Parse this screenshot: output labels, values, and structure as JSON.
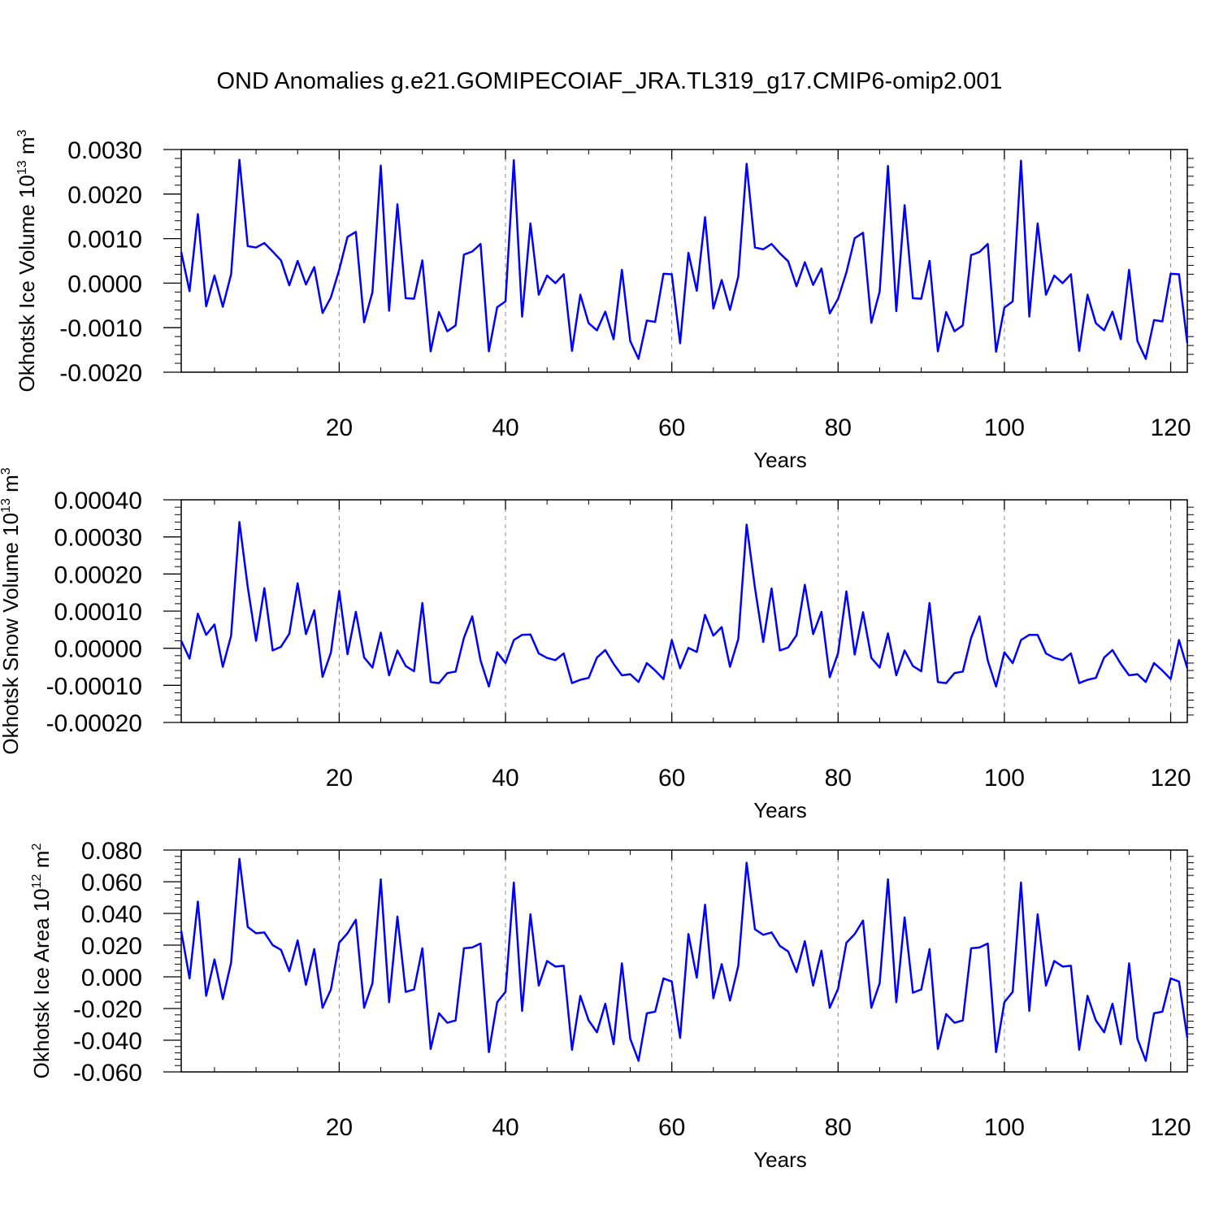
{
  "title": "OND Anomalies g.e21.GOMIPECOIAF_JRA.TL319_g17.CMIP6-omip2.001",
  "colors": {
    "line": "#0000ff",
    "axis": "#000000",
    "grid": "#888888"
  },
  "chart_data": [
    {
      "type": "line",
      "xlabel": "Years",
      "ylabel": "Okhotsk Ice Volume 10",
      "ylabel_exp": "13",
      "ylabel_unit": "m",
      "ylabel_unit_exp": "3",
      "xlim": [
        1,
        122
      ],
      "ylim": [
        -0.002,
        0.003
      ],
      "x_ticks": [
        20,
        40,
        60,
        80,
        100,
        120
      ],
      "x_tick_labels": [
        "20",
        "40",
        "60",
        "80",
        "100",
        "120"
      ],
      "y_ticks": [
        -0.002,
        -0.001,
        0.0,
        0.001,
        0.002,
        0.003
      ],
      "y_tick_labels": [
        "-0.0020",
        "-0.0010",
        "0.0000",
        "0.0010",
        "0.0020",
        "0.0030"
      ],
      "grid": "vertical dashed at x major ticks",
      "series": [
        {
          "x_start": 1,
          "values": [
            0.0007,
            -0.00018,
            0.00155,
            -0.00052,
            0.00017,
            -0.00053,
            0.0002,
            0.00277,
            0.00083,
            0.0008,
            0.0009,
            0.00071,
            0.00051,
            -5e-05,
            0.0005,
            -3e-05,
            0.00036,
            -0.00067,
            -0.00032,
            0.0003,
            0.00104,
            0.00115,
            -0.00088,
            -0.0002,
            0.00264,
            -0.00062,
            0.00177,
            -0.00034,
            -0.00035,
            0.00051,
            -0.00153,
            -0.00065,
            -0.00108,
            -0.00095,
            0.00064,
            0.00071,
            0.00088,
            -0.00153,
            -0.00054,
            -0.00041,
            0.00276,
            -0.00075,
            0.00134,
            -0.00026,
            0.00017,
            0.0,
            0.0002,
            -0.00152,
            -0.00026,
            -0.0009,
            -0.00106,
            -0.00064,
            -0.00126,
            0.0003,
            -0.0013,
            -0.0017,
            -0.00084,
            -0.00087,
            0.00021,
            0.0002,
            -0.00135,
            0.00068,
            -0.00017,
            0.00148,
            -0.00057,
            7e-05,
            -0.0006,
            0.00015,
            0.00268,
            0.0008,
            0.00076,
            0.00088,
            0.00067,
            0.00049,
            -7e-05,
            0.00047,
            -4e-05,
            0.00033,
            -0.00068,
            -0.00035,
            0.00024,
            0.00101,
            0.00113,
            -0.00089,
            -0.00019,
            0.00263,
            -0.00063,
            0.00175,
            -0.00034,
            -0.00035,
            0.0005,
            -0.00153,
            -0.00065,
            -0.00108,
            -0.00095,
            0.00063,
            0.0007,
            0.00088,
            -0.00154,
            -0.00055,
            -0.00041,
            0.00275,
            -0.00075,
            0.00134,
            -0.00026,
            0.00017,
            0.0,
            0.0002,
            -0.00152,
            -0.00026,
            -0.0009,
            -0.00106,
            -0.00064,
            -0.00126,
            0.0003,
            -0.0013,
            -0.0017,
            -0.00083,
            -0.00086,
            0.00021,
            0.0002,
            -0.00135
          ]
        }
      ]
    },
    {
      "type": "line",
      "xlabel": "Years",
      "ylabel": "Okhotsk Snow Volume 10",
      "ylabel_exp": "13",
      "ylabel_unit": "m",
      "ylabel_unit_exp": "3",
      "xlim": [
        1,
        122
      ],
      "ylim": [
        -0.0002,
        0.0004
      ],
      "x_ticks": [
        20,
        40,
        60,
        80,
        100,
        120
      ],
      "x_tick_labels": [
        "20",
        "40",
        "60",
        "80",
        "100",
        "120"
      ],
      "y_ticks": [
        -0.0002,
        -0.0001,
        0.0,
        0.0001,
        0.0002,
        0.0003,
        0.0004
      ],
      "y_tick_labels": [
        "-0.00020",
        "-0.00010",
        "0.00000",
        "0.00010",
        "0.00020",
        "0.00030",
        "0.00040"
      ],
      "grid": "vertical dashed at x major ticks",
      "series": [
        {
          "x_start": 1,
          "values": [
            2e-05,
            -2.8e-05,
            9.3e-05,
            3.6e-05,
            6.4e-05,
            -5e-05,
            3.4e-05,
            0.00034,
            0.000165,
            2e-05,
            0.000162,
            -6e-06,
            4e-06,
            3.9e-05,
            0.000175,
            3.8e-05,
            0.000102,
            -7.7e-05,
            -1.2e-05,
            0.000154,
            -1.6e-05,
            9.8e-05,
            -2.5e-05,
            -5.2e-05,
            4.2e-05,
            -7.3e-05,
            -6e-06,
            -4.8e-05,
            -6.2e-05,
            0.000122,
            -9.1e-05,
            -9.4e-05,
            -6.7e-05,
            -6.3e-05,
            2.8e-05,
            8.6e-05,
            -3.3e-05,
            -0.000103,
            -1.1e-05,
            -4e-05,
            2.2e-05,
            3.6e-05,
            3.7e-05,
            -1.4e-05,
            -2.6e-05,
            -3.2e-05,
            -1.4e-05,
            -9.4e-05,
            -8.5e-05,
            -8e-05,
            -2.5e-05,
            -5e-06,
            -4.2e-05,
            -7.3e-05,
            -7e-05,
            -9.1e-05,
            -4e-05,
            -6e-05,
            -8.3e-05,
            2.2e-05,
            -5.4e-05,
            1e-06,
            -1e-05,
            9e-05,
            3.4e-05,
            5.7e-05,
            -5e-05,
            2.5e-05,
            0.000333,
            0.000163,
            1.7e-05,
            0.000161,
            -6e-06,
            2e-06,
            3.5e-05,
            0.000171,
            3.8e-05,
            9.8e-05,
            -7.8e-05,
            -1.3e-05,
            0.000153,
            -1.7e-05,
            9.7e-05,
            -2.6e-05,
            -5.2e-05,
            4e-05,
            -7.3e-05,
            -6e-06,
            -4.8e-05,
            -6.2e-05,
            0.000122,
            -9.1e-05,
            -9.4e-05,
            -6.7e-05,
            -6.3e-05,
            2.8e-05,
            8.6e-05,
            -3.3e-05,
            -0.000103,
            -1.1e-05,
            -4e-05,
            2.2e-05,
            3.6e-05,
            3.6e-05,
            -1.4e-05,
            -2.6e-05,
            -3.2e-05,
            -1.4e-05,
            -9.4e-05,
            -8.5e-05,
            -8e-05,
            -2.5e-05,
            -5e-06,
            -4.2e-05,
            -7.3e-05,
            -7e-05,
            -9.1e-05,
            -4e-05,
            -6e-05,
            -8.3e-05,
            2.2e-05,
            -5.4e-05
          ]
        }
      ]
    },
    {
      "type": "line",
      "xlabel": "Years",
      "ylabel": "Okhotsk Ice Area 10",
      "ylabel_exp": "12",
      "ylabel_unit": "m",
      "ylabel_unit_exp": "2",
      "xlim": [
        1,
        122
      ],
      "ylim": [
        -0.06,
        0.08
      ],
      "x_ticks": [
        20,
        40,
        60,
        80,
        100,
        120
      ],
      "x_tick_labels": [
        "20",
        "40",
        "60",
        "80",
        "100",
        "120"
      ],
      "y_ticks": [
        -0.06,
        -0.04,
        -0.02,
        0.0,
        0.02,
        0.04,
        0.06,
        0.08
      ],
      "y_tick_labels": [
        "-0.060",
        "-0.040",
        "-0.020",
        "0.000",
        "0.020",
        "0.040",
        "0.060",
        "0.080"
      ],
      "grid": "vertical dashed at x major ticks",
      "series": [
        {
          "x_start": 1,
          "values": [
            0.029,
            -0.001,
            0.0475,
            -0.012,
            0.011,
            -0.014,
            0.009,
            0.0745,
            0.0315,
            0.0275,
            0.028,
            0.02,
            0.017,
            0.0035,
            0.023,
            -0.005,
            0.0175,
            -0.0195,
            -0.008,
            0.0215,
            0.0275,
            0.036,
            -0.0195,
            -0.004,
            0.0615,
            -0.016,
            0.038,
            -0.0095,
            -0.008,
            0.018,
            -0.0455,
            -0.023,
            -0.029,
            -0.0275,
            0.018,
            0.0185,
            0.021,
            -0.0475,
            -0.016,
            -0.0095,
            0.0595,
            -0.0215,
            0.0395,
            -0.0055,
            0.01,
            0.0065,
            0.007,
            -0.046,
            -0.012,
            -0.0275,
            -0.035,
            -0.017,
            -0.0425,
            0.0085,
            -0.039,
            -0.053,
            -0.023,
            -0.022,
            -0.001,
            -0.003,
            -0.0385,
            0.027,
            -0.0005,
            0.0455,
            -0.0135,
            0.008,
            -0.015,
            0.007,
            0.072,
            0.03,
            0.0265,
            0.028,
            0.0195,
            0.016,
            0.003,
            0.0225,
            -0.0055,
            0.0165,
            -0.0195,
            -0.0075,
            0.0215,
            0.027,
            0.0355,
            -0.0195,
            -0.004,
            0.0615,
            -0.016,
            0.0375,
            -0.01,
            -0.008,
            0.0175,
            -0.0455,
            -0.0235,
            -0.029,
            -0.0275,
            0.018,
            0.0185,
            0.021,
            -0.0475,
            -0.016,
            -0.0095,
            0.0595,
            -0.0215,
            0.0395,
            -0.0055,
            0.01,
            0.0065,
            0.007,
            -0.046,
            -0.012,
            -0.0275,
            -0.035,
            -0.017,
            -0.0425,
            0.0085,
            -0.039,
            -0.053,
            -0.023,
            -0.022,
            -0.001,
            -0.003,
            -0.0385
          ]
        }
      ]
    }
  ]
}
